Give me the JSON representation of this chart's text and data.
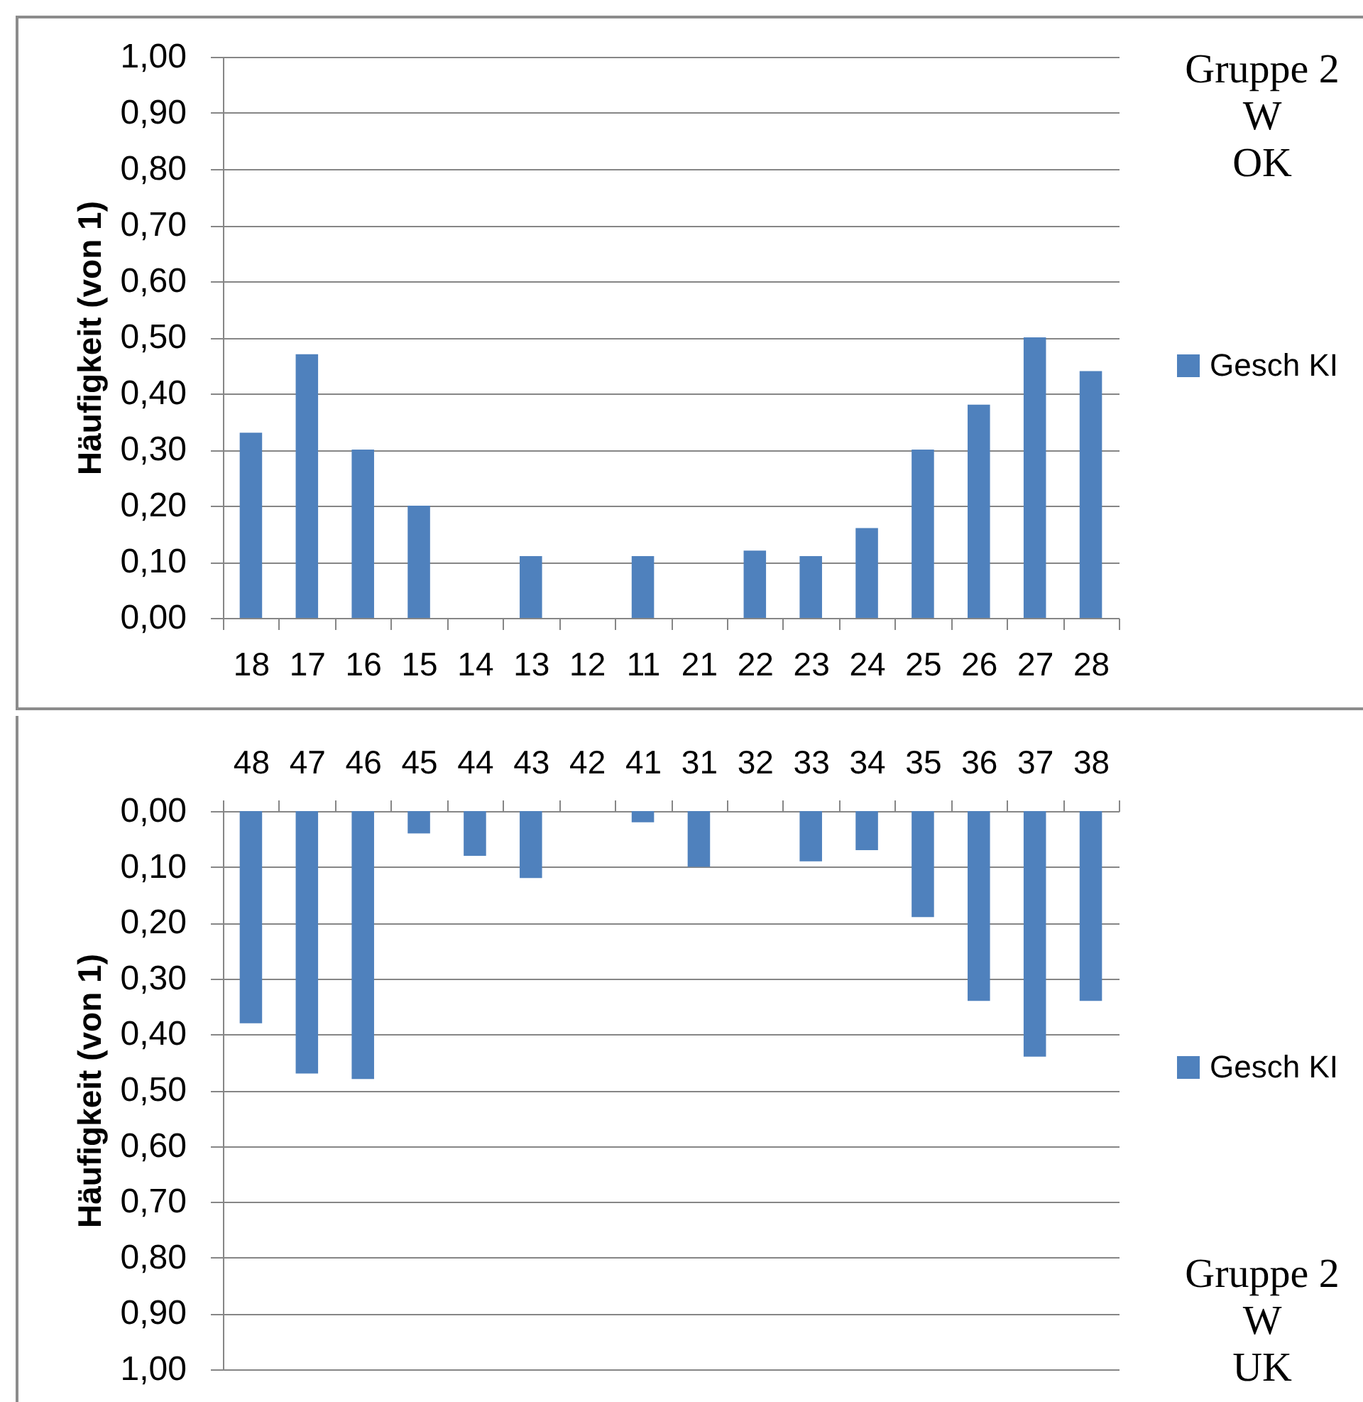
{
  "chart_data": [
    {
      "type": "bar",
      "annotations": [
        "Gruppe 2\nW\nOK"
      ],
      "ylabel": "Häufigkeit (von 1)",
      "categories": [
        "18",
        "17",
        "16",
        "15",
        "14",
        "13",
        "12",
        "11",
        "21",
        "22",
        "23",
        "24",
        "25",
        "26",
        "27",
        "28"
      ],
      "series": [
        {
          "name": "Gesch KI",
          "color": "#4f81bd",
          "values": [
            0.33,
            0.47,
            0.3,
            0.2,
            0,
            0.11,
            0,
            0.11,
            0,
            0.12,
            0.11,
            0.16,
            0.3,
            0.38,
            0.5,
            0.44
          ]
        }
      ],
      "ylim": [
        0,
        1
      ],
      "yticks": [
        {
          "value": 0,
          "label": "0,00"
        },
        {
          "value": 0.1,
          "label": "0,10"
        },
        {
          "value": 0.2,
          "label": "0,20"
        },
        {
          "value": 0.3,
          "label": "0,30"
        },
        {
          "value": 0.4,
          "label": "0,40"
        },
        {
          "value": 0.5,
          "label": "0,50"
        },
        {
          "value": 0.6,
          "label": "0,60"
        },
        {
          "value": 0.7,
          "label": "0,70"
        },
        {
          "value": 0.8,
          "label": "0,80"
        },
        {
          "value": 0.9,
          "label": "0,90"
        },
        {
          "value": 1,
          "label": "1,00"
        }
      ],
      "grid": "y",
      "legend": "right"
    },
    {
      "type": "bar",
      "annotations": [
        "Gruppe 2\nW\nUK"
      ],
      "ylabel": "Häufigkeit (von 1)",
      "categories": [
        "48",
        "47",
        "46",
        "45",
        "44",
        "43",
        "42",
        "41",
        "31",
        "32",
        "33",
        "34",
        "35",
        "36",
        "37",
        "38"
      ],
      "series": [
        {
          "name": "Gesch KI",
          "color": "#4f81bd",
          "values": [
            0.38,
            0.47,
            0.48,
            0.04,
            0.08,
            0.12,
            0,
            0.02,
            0.1,
            0,
            0.09,
            0.07,
            0.19,
            0.34,
            0.44,
            0.34
          ]
        }
      ],
      "ylim": [
        1,
        0
      ],
      "yticks": [
        {
          "value": 0,
          "label": "0,00"
        },
        {
          "value": 0.1,
          "label": "0,10"
        },
        {
          "value": 0.2,
          "label": "0,20"
        },
        {
          "value": 0.3,
          "label": "0,30"
        },
        {
          "value": 0.4,
          "label": "0,40"
        },
        {
          "value": 0.5,
          "label": "0,50"
        },
        {
          "value": 0.6,
          "label": "0,60"
        },
        {
          "value": 0.7,
          "label": "0,70"
        },
        {
          "value": 0.8,
          "label": "0,80"
        },
        {
          "value": 0.9,
          "label": "0,90"
        },
        {
          "value": 1,
          "label": "1,00"
        }
      ],
      "grid": "y",
      "legend": "right"
    }
  ]
}
